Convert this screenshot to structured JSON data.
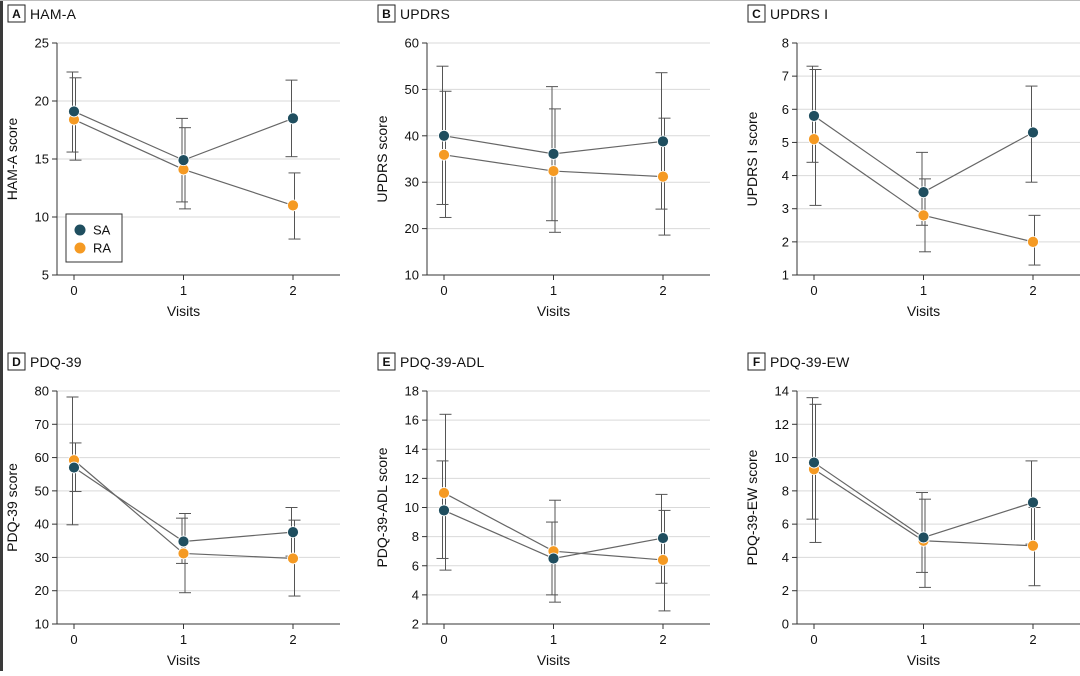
{
  "colors": {
    "SA": "#1f4e5f",
    "RA": "#f59a23",
    "grid": "#d9d9d9",
    "axis": "#333333",
    "errorbar": "#555555",
    "connector": "#666666"
  },
  "legend": {
    "items": [
      {
        "name": "SA",
        "color": "#1f4e5f"
      },
      {
        "name": "RA",
        "color": "#f59a23"
      }
    ]
  },
  "chart_data": [
    {
      "panel": "A",
      "title": "HAM-A",
      "type": "line",
      "xlabel": "Visits",
      "ylabel": "HAM-A score",
      "x": [
        0,
        1,
        2
      ],
      "ylim": [
        5,
        25
      ],
      "yticks": [
        5,
        10,
        15,
        20,
        25
      ],
      "grid": true,
      "legend": "bottom-left",
      "series": [
        {
          "name": "SA",
          "values": [
            19.1,
            14.9,
            18.5
          ],
          "lower": [
            15.6,
            11.3,
            15.2
          ],
          "upper": [
            22.5,
            18.5,
            21.8
          ]
        },
        {
          "name": "RA",
          "values": [
            18.4,
            14.1,
            11.0
          ],
          "lower": [
            14.9,
            10.7,
            8.1
          ],
          "upper": [
            22.0,
            17.7,
            13.8
          ]
        }
      ]
    },
    {
      "panel": "B",
      "title": "UPDRS",
      "type": "line",
      "xlabel": "Visits",
      "ylabel": "UPDRS score",
      "x": [
        0,
        1,
        2
      ],
      "ylim": [
        10,
        60
      ],
      "yticks": [
        10,
        20,
        30,
        40,
        50,
        60
      ],
      "grid": true,
      "series": [
        {
          "name": "SA",
          "values": [
            40.0,
            36.1,
            38.8
          ],
          "lower": [
            25.2,
            21.7,
            24.2
          ],
          "upper": [
            55.0,
            50.6,
            53.6
          ]
        },
        {
          "name": "RA",
          "values": [
            35.9,
            32.4,
            31.2
          ],
          "lower": [
            22.4,
            19.2,
            18.6
          ],
          "upper": [
            49.6,
            45.8,
            43.8
          ]
        }
      ]
    },
    {
      "panel": "C",
      "title": "UPDRS I",
      "type": "line",
      "xlabel": "Visits",
      "ylabel": "UPDRS I score",
      "x": [
        0,
        1,
        2
      ],
      "ylim": [
        1,
        8
      ],
      "yticks": [
        1,
        2,
        3,
        4,
        5,
        6,
        7,
        8
      ],
      "grid": true,
      "series": [
        {
          "name": "SA",
          "values": [
            5.8,
            3.5,
            5.3
          ],
          "lower": [
            4.4,
            2.5,
            3.8
          ],
          "upper": [
            7.3,
            4.7,
            6.7
          ]
        },
        {
          "name": "RA",
          "values": [
            5.1,
            2.8,
            2.0
          ],
          "lower": [
            3.1,
            1.7,
            1.3
          ],
          "upper": [
            7.2,
            3.9,
            2.8
          ]
        }
      ]
    },
    {
      "panel": "D",
      "title": "PDQ-39",
      "type": "line",
      "xlabel": "Visits",
      "ylabel": "PDQ-39 score",
      "x": [
        0,
        1,
        2
      ],
      "ylim": [
        10,
        80
      ],
      "yticks": [
        10,
        20,
        30,
        40,
        50,
        60,
        70,
        80
      ],
      "grid": true,
      "series": [
        {
          "name": "SA",
          "values": [
            57.0,
            34.8,
            37.6
          ],
          "lower": [
            39.8,
            28.2,
            30.4
          ],
          "upper": [
            78.2,
            41.8,
            45.0
          ]
        },
        {
          "name": "RA",
          "values": [
            59.2,
            31.2,
            29.7
          ],
          "lower": [
            49.8,
            19.4,
            18.4
          ],
          "upper": [
            64.4,
            43.2,
            41.2
          ]
        }
      ]
    },
    {
      "panel": "E",
      "title": "PDQ-39-ADL",
      "type": "line",
      "xlabel": "Visits",
      "ylabel": "PDQ-39-ADL score",
      "x": [
        0,
        1,
        2
      ],
      "ylim": [
        2,
        18
      ],
      "yticks": [
        2,
        4,
        6,
        8,
        10,
        12,
        14,
        16,
        18
      ],
      "grid": true,
      "series": [
        {
          "name": "SA",
          "values": [
            9.8,
            6.5,
            7.9
          ],
          "lower": [
            6.5,
            4.0,
            4.8
          ],
          "upper": [
            13.2,
            9.0,
            10.9
          ]
        },
        {
          "name": "RA",
          "values": [
            11.0,
            7.0,
            6.4
          ],
          "lower": [
            5.7,
            3.5,
            2.9
          ],
          "upper": [
            16.4,
            10.5,
            9.8
          ]
        }
      ]
    },
    {
      "panel": "F",
      "title": "PDQ-39-EW",
      "type": "line",
      "xlabel": "Visits",
      "ylabel": "PDQ-39-EW score",
      "x": [
        0,
        1,
        2
      ],
      "ylim": [
        0,
        14
      ],
      "yticks": [
        0,
        2,
        4,
        6,
        8,
        10,
        12,
        14
      ],
      "grid": true,
      "series": [
        {
          "name": "SA",
          "values": [
            9.7,
            5.2,
            7.3
          ],
          "lower": [
            6.3,
            3.1,
            4.8
          ],
          "upper": [
            13.6,
            7.9,
            9.8
          ]
        },
        {
          "name": "RA",
          "values": [
            9.3,
            5.0,
            4.7
          ],
          "lower": [
            4.9,
            2.2,
            2.3
          ],
          "upper": [
            13.2,
            7.5,
            7.0
          ]
        }
      ]
    }
  ]
}
